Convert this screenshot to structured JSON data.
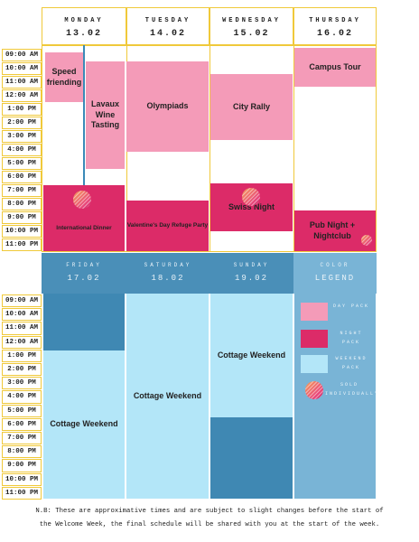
{
  "week1": {
    "days": [
      {
        "name": "MONDAY",
        "date": "13.02"
      },
      {
        "name": "TUESDAY",
        "date": "14.02"
      },
      {
        "name": "WEDNESDAY",
        "date": "15.02"
      },
      {
        "name": "THURSDAY",
        "date": "16.02"
      }
    ],
    "times": [
      "09:00 AM",
      "10:00 AM",
      "11:00 AM",
      "12:00 AM",
      "1:00 PM",
      "2:00 PM",
      "3:00 PM",
      "4:00 PM",
      "5:00 PM",
      "6:00 PM",
      "7:00 PM",
      "8:00 PM",
      "9:00 PM",
      "10:00 PM",
      "11:00 PM"
    ],
    "events": [
      {
        "label": "Speed friending"
      },
      {
        "label": "Lavaux Wine Tasting"
      },
      {
        "label": "International Dinner"
      },
      {
        "label": "Olympiads"
      },
      {
        "label": "Valentine's Day Refuge Party"
      },
      {
        "label": "City Rally"
      },
      {
        "label": "Swiss Night"
      },
      {
        "label": "Campus Tour"
      },
      {
        "label": "Pub Night + Nightclub"
      }
    ]
  },
  "week2": {
    "days": [
      {
        "name": "FRIDAY",
        "date": "17.02"
      },
      {
        "name": "SATURDAY",
        "date": "18.02"
      },
      {
        "name": "SUNDAY",
        "date": "19.02"
      },
      {
        "name": "COLOR",
        "date": "LEGEND"
      }
    ],
    "times": [
      "09:00 AM",
      "10:00 AM",
      "11:00 AM",
      "12:00 AM",
      "1:00 PM",
      "2:00 PM",
      "3:00 PM",
      "4:00 PM",
      "5:00 PM",
      "6:00 PM",
      "7:00 PM",
      "8:00 PM",
      "9:00 PM",
      "10:00 PM",
      "11:00 PM"
    ],
    "events": [
      {
        "label": "Cottage Weekend"
      },
      {
        "label": "Cottage Weekend"
      },
      {
        "label": "Cottage Weekend"
      }
    ]
  },
  "legend": [
    "DAY PACK",
    "NIGHT PACK",
    "WEEKEND PACK",
    "SOLD INDIVIDUALLY"
  ],
  "note": [
    "N.B: These are approximative times and are subject to slight changes before the start of",
    "the Welcome Week, the final schedule will be shared with you at the start of the week."
  ]
}
